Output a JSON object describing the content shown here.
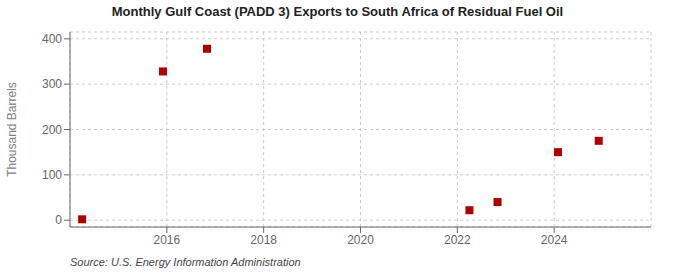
{
  "chart_data": {
    "type": "scatter",
    "title": "Monthly Gulf Coast (PADD 3) Exports to South Africa of Residual Fuel Oil",
    "ylabel": "Thousand Barrels",
    "annotations": [
      "Source: U.S. Energy Information Administration"
    ],
    "x": [
      2014.25,
      2015.92,
      2016.83,
      2022.25,
      2022.83,
      2024.08,
      2024.92
    ],
    "values": [
      2,
      328,
      378,
      22,
      40,
      150,
      175
    ],
    "color": "#aa0000",
    "marker": "square",
    "xlim": [
      2014.0,
      2026.0
    ],
    "ylim": [
      -15,
      415
    ],
    "xticks": [
      2016,
      2018,
      2020,
      2022,
      2024
    ],
    "yticks": [
      0,
      100,
      200,
      300,
      400
    ],
    "grid": true
  }
}
